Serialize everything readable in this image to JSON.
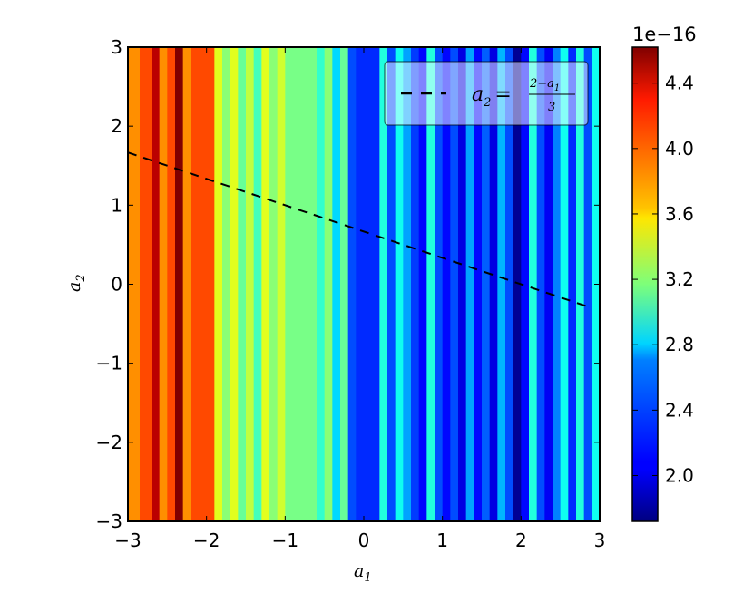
{
  "chart_data": {
    "type": "heatmap",
    "xlabel": "a",
    "xlabel_sub": "1",
    "ylabel": "a",
    "ylabel_sub": "2",
    "xlim": [
      -3,
      3
    ],
    "ylim": [
      -3,
      3
    ],
    "x_ticks": [
      -3,
      -2,
      -1,
      0,
      1,
      2,
      3
    ],
    "x_tick_labels": [
      "−3",
      "−2",
      "−1",
      "0",
      "1",
      "2",
      "3"
    ],
    "y_ticks": [
      -3,
      -2,
      -1,
      0,
      1,
      2,
      3
    ],
    "y_tick_labels": [
      "−3",
      "−2",
      "−1",
      "0",
      "1",
      "2",
      "3"
    ],
    "colormap": "jet",
    "colorbar": {
      "range": [
        1.72,
        4.62
      ],
      "ticks": [
        2.0,
        2.4,
        2.8,
        3.2,
        3.6,
        4.0,
        4.4
      ],
      "tick_labels": [
        "2.0",
        "2.4",
        "2.8",
        "3.2",
        "3.6",
        "4.0",
        "4.4"
      ],
      "offset_label": "1e−16"
    },
    "heatmap_note": "values vary along a1 only (vertical stripes), units 1e-16",
    "columns": [
      {
        "a1_start": -3.0,
        "a1_end": -2.85,
        "value": 3.85
      },
      {
        "a1_start": -2.85,
        "a1_end": -2.7,
        "value": 4.05
      },
      {
        "a1_start": -2.7,
        "a1_end": -2.6,
        "value": 4.45
      },
      {
        "a1_start": -2.6,
        "a1_end": -2.5,
        "value": 3.85
      },
      {
        "a1_start": -2.5,
        "a1_end": -2.4,
        "value": 4.05
      },
      {
        "a1_start": -2.4,
        "a1_end": -2.3,
        "value": 4.65
      },
      {
        "a1_start": -2.3,
        "a1_end": -2.2,
        "value": 3.85
      },
      {
        "a1_start": -2.2,
        "a1_end": -1.9,
        "value": 4.05
      },
      {
        "a1_start": -1.9,
        "a1_end": -1.8,
        "value": 3.45
      },
      {
        "a1_start": -1.8,
        "a1_end": -1.7,
        "value": 3.2
      },
      {
        "a1_start": -1.7,
        "a1_end": -1.6,
        "value": 3.45
      },
      {
        "a1_start": -1.6,
        "a1_end": -1.5,
        "value": 3.1
      },
      {
        "a1_start": -1.5,
        "a1_end": -1.4,
        "value": 3.35
      },
      {
        "a1_start": -1.4,
        "a1_end": -1.3,
        "value": 3.0
      },
      {
        "a1_start": -1.3,
        "a1_end": -1.2,
        "value": 3.45
      },
      {
        "a1_start": -1.2,
        "a1_end": -1.1,
        "value": 3.2
      },
      {
        "a1_start": -1.1,
        "a1_end": -1.0,
        "value": 3.4
      },
      {
        "a1_start": -1.0,
        "a1_end": -0.6,
        "value": 3.15
      },
      {
        "a1_start": -0.6,
        "a1_end": -0.5,
        "value": 2.95
      },
      {
        "a1_start": -0.5,
        "a1_end": -0.4,
        "value": 3.2
      },
      {
        "a1_start": -0.4,
        "a1_end": -0.3,
        "value": 2.7
      },
      {
        "a1_start": -0.3,
        "a1_end": -0.2,
        "value": 3.1
      },
      {
        "a1_start": -0.2,
        "a1_end": -0.1,
        "value": 2.3
      },
      {
        "a1_start": -0.1,
        "a1_end": 0.2,
        "value": 2.2
      },
      {
        "a1_start": 0.2,
        "a1_end": 0.3,
        "value": 2.9
      },
      {
        "a1_start": 0.3,
        "a1_end": 0.4,
        "value": 2.3
      },
      {
        "a1_start": 0.4,
        "a1_end": 0.5,
        "value": 2.85
      },
      {
        "a1_start": 0.5,
        "a1_end": 0.6,
        "value": 2.55
      },
      {
        "a1_start": 0.6,
        "a1_end": 0.7,
        "value": 2.25
      },
      {
        "a1_start": 0.7,
        "a1_end": 0.8,
        "value": 2.1
      },
      {
        "a1_start": 0.8,
        "a1_end": 0.9,
        "value": 2.9
      },
      {
        "a1_start": 0.9,
        "a1_end": 1.0,
        "value": 2.3
      },
      {
        "a1_start": 1.0,
        "a1_end": 1.1,
        "value": 2.1
      },
      {
        "a1_start": 1.1,
        "a1_end": 1.2,
        "value": 2.3
      },
      {
        "a1_start": 1.2,
        "a1_end": 1.3,
        "value": 2.0
      },
      {
        "a1_start": 1.3,
        "a1_end": 1.4,
        "value": 2.55
      },
      {
        "a1_start": 1.4,
        "a1_end": 1.5,
        "value": 2.1
      },
      {
        "a1_start": 1.5,
        "a1_end": 1.6,
        "value": 2.35
      },
      {
        "a1_start": 1.6,
        "a1_end": 1.7,
        "value": 2.0
      },
      {
        "a1_start": 1.7,
        "a1_end": 1.8,
        "value": 2.6
      },
      {
        "a1_start": 1.8,
        "a1_end": 1.9,
        "value": 2.3
      },
      {
        "a1_start": 1.9,
        "a1_end": 2.0,
        "value": 1.78
      },
      {
        "a1_start": 2.0,
        "a1_end": 2.1,
        "value": 2.1
      },
      {
        "a1_start": 2.1,
        "a1_end": 2.2,
        "value": 2.9
      },
      {
        "a1_start": 2.2,
        "a1_end": 2.3,
        "value": 2.3
      },
      {
        "a1_start": 2.3,
        "a1_end": 2.4,
        "value": 2.05
      },
      {
        "a1_start": 2.4,
        "a1_end": 2.5,
        "value": 2.45
      },
      {
        "a1_start": 2.5,
        "a1_end": 2.6,
        "value": 2.85
      },
      {
        "a1_start": 2.6,
        "a1_end": 2.7,
        "value": 2.2
      },
      {
        "a1_start": 2.7,
        "a1_end": 2.8,
        "value": 2.9
      },
      {
        "a1_start": 2.8,
        "a1_end": 2.9,
        "value": 2.3
      },
      {
        "a1_start": 2.9,
        "a1_end": 3.0,
        "value": 2.85
      }
    ],
    "series": [
      {
        "name": "a₂ = (2 − a₁)/3",
        "style": "dashed",
        "color": "#000000",
        "x": [
          -3,
          2.9
        ],
        "y": [
          1.6667,
          -0.3
        ]
      }
    ],
    "legend": {
      "position": "top-right",
      "label_main": "a",
      "label_main_sub": "2",
      "label_eq": "=",
      "label_num": "2−a",
      "label_num_sub": "1",
      "label_den": "3"
    }
  }
}
